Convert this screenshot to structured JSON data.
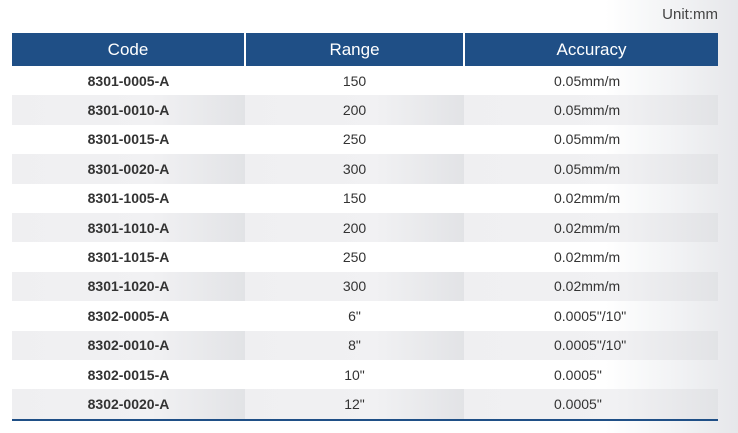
{
  "unit_label": "Unit:mm",
  "headers": {
    "code": "Code",
    "range": "Range",
    "accuracy": "Accuracy"
  },
  "rows": [
    {
      "code": "8301-0005-A",
      "range": "150",
      "accuracy": "0.05mm/m"
    },
    {
      "code": "8301-0010-A",
      "range": "200",
      "accuracy": "0.05mm/m"
    },
    {
      "code": "8301-0015-A",
      "range": "250",
      "accuracy": "0.05mm/m"
    },
    {
      "code": "8301-0020-A",
      "range": "300",
      "accuracy": "0.05mm/m"
    },
    {
      "code": "8301-1005-A",
      "range": "150",
      "accuracy": "0.02mm/m"
    },
    {
      "code": "8301-1010-A",
      "range": "200",
      "accuracy": "0.02mm/m"
    },
    {
      "code": "8301-1015-A",
      "range": "250",
      "accuracy": "0.02mm/m"
    },
    {
      "code": "8301-1020-A",
      "range": "300",
      "accuracy": "0.02mm/m"
    },
    {
      "code": "8302-0005-A",
      "range": "6\"",
      "accuracy": "0.0005\"/10\""
    },
    {
      "code": "8302-0010-A",
      "range": "8\"",
      "accuracy": "0.0005\"/10\""
    },
    {
      "code": "8302-0015-A",
      "range": "10\"",
      "accuracy": "0.0005\""
    },
    {
      "code": "8302-0020-A",
      "range": "12\"",
      "accuracy": "0.0005\""
    }
  ],
  "colors": {
    "header_bg": "#1f4f86",
    "header_text": "#ffffff",
    "stripe": "#efeff1"
  }
}
